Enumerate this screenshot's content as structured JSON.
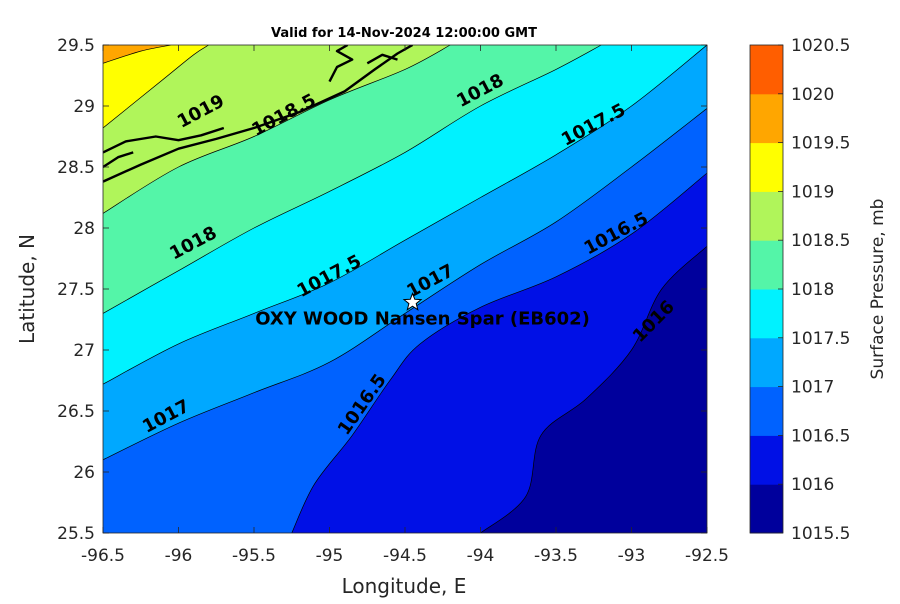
{
  "chart_data": {
    "type": "contour",
    "title": "Valid for 14-Nov-2024 12:00:00 GMT",
    "xlabel": "Longitude, E",
    "ylabel": "Latitude, N",
    "xlim": [
      -96.5,
      -92.5
    ],
    "ylim": [
      25.5,
      29.5
    ],
    "xticks": [
      "-96.5",
      "-96",
      "-95.5",
      "-95",
      "-94.5",
      "-94",
      "-93.5",
      "-93",
      "-92.5"
    ],
    "yticks": [
      "25.5",
      "26",
      "26.5",
      "27",
      "27.5",
      "28",
      "28.5",
      "29",
      "29.5"
    ],
    "grid": false,
    "colorbar": {
      "label": "Surface Pressure, mb",
      "ticks": [
        "1015.5",
        "1016",
        "1016.5",
        "1017",
        "1017.5",
        "1018",
        "1018.5",
        "1019",
        "1019.5",
        "1020",
        "1020.5"
      ],
      "levels": [
        1015.5,
        1016,
        1016.5,
        1017,
        1017.5,
        1018,
        1018.5,
        1019,
        1019.5,
        1020,
        1020.5
      ],
      "colors": [
        "#00009c",
        "#0010e6",
        "#0062ff",
        "#00a8ff",
        "#00f2ff",
        "#54f5a8",
        "#b0f55a",
        "#ffff00",
        "#ffa600",
        "#ff5e00",
        "#ff0000"
      ]
    },
    "contours": [
      {
        "level": 1016,
        "label": "1016",
        "points": [
          [
            -94.0,
            25.5
          ],
          [
            -93.7,
            25.8
          ],
          [
            -93.6,
            26.3
          ],
          [
            -93.3,
            26.6
          ],
          [
            -93.0,
            27.0
          ],
          [
            -92.8,
            27.5
          ],
          [
            -92.5,
            27.85
          ]
        ]
      },
      {
        "level": 1016.5,
        "label": "1016.5",
        "points": [
          [
            -95.25,
            25.5
          ],
          [
            -95.1,
            25.9
          ],
          [
            -94.85,
            26.3
          ],
          [
            -94.6,
            26.75
          ],
          [
            -94.4,
            27.05
          ],
          [
            -94.0,
            27.35
          ],
          [
            -93.5,
            27.6
          ],
          [
            -93.0,
            27.95
          ],
          [
            -92.5,
            28.45
          ]
        ]
      },
      {
        "level": 1017,
        "label": "1017",
        "points": [
          [
            -96.5,
            26.1
          ],
          [
            -96.0,
            26.4
          ],
          [
            -95.5,
            26.65
          ],
          [
            -95.0,
            26.9
          ],
          [
            -94.5,
            27.3
          ],
          [
            -94.0,
            27.7
          ],
          [
            -93.5,
            28.05
          ],
          [
            -93.0,
            28.5
          ],
          [
            -92.5,
            28.98
          ]
        ]
      },
      {
        "level": 1017.5,
        "label": "1017.5",
        "points": [
          [
            -96.5,
            26.72
          ],
          [
            -96.0,
            27.05
          ],
          [
            -95.5,
            27.3
          ],
          [
            -95.0,
            27.55
          ],
          [
            -94.5,
            27.9
          ],
          [
            -94.0,
            28.25
          ],
          [
            -93.5,
            28.6
          ],
          [
            -93.0,
            29.0
          ],
          [
            -92.5,
            29.5
          ]
        ]
      },
      {
        "level": 1018,
        "label": "1018",
        "points": [
          [
            -96.5,
            27.3
          ],
          [
            -96.0,
            27.65
          ],
          [
            -95.5,
            28.0
          ],
          [
            -95.0,
            28.3
          ],
          [
            -94.5,
            28.62
          ],
          [
            -94.0,
            29.0
          ],
          [
            -93.5,
            29.3
          ],
          [
            -93.2,
            29.5
          ]
        ]
      },
      {
        "level": 1018.5,
        "label": "1018.5",
        "points": [
          [
            -96.5,
            28.12
          ],
          [
            -96.0,
            28.5
          ],
          [
            -95.5,
            28.75
          ],
          [
            -95.0,
            29.05
          ],
          [
            -94.5,
            29.3
          ],
          [
            -94.2,
            29.5
          ]
        ]
      },
      {
        "level": 1019,
        "label": "1019",
        "points": [
          [
            -96.5,
            28.82
          ],
          [
            -96.1,
            29.22
          ],
          [
            -95.9,
            29.42
          ],
          [
            -95.8,
            29.5
          ]
        ]
      }
    ],
    "contour_labels": [
      {
        "text": "1019",
        "lon": -95.85,
        "lat": 28.95
      },
      {
        "text": "1018.5",
        "lon": -95.3,
        "lat": 28.92
      },
      {
        "text": "1018",
        "lon": -94.0,
        "lat": 29.12
      },
      {
        "text": "1017.5",
        "lon": -93.25,
        "lat": 28.84
      },
      {
        "text": "1018",
        "lon": -95.9,
        "lat": 27.87
      },
      {
        "text": "1017.5",
        "lon": -95.0,
        "lat": 27.6
      },
      {
        "text": "1017",
        "lon": -94.33,
        "lat": 27.56
      },
      {
        "text": "1016.5",
        "lon": -93.1,
        "lat": 27.95
      },
      {
        "text": "1017",
        "lon": -96.08,
        "lat": 26.45
      },
      {
        "text": "1016.5",
        "lon": -94.78,
        "lat": 26.55
      },
      {
        "text": "1016",
        "lon": -92.85,
        "lat": 27.23
      }
    ],
    "annotations": [
      {
        "type": "star",
        "lon": -94.45,
        "lat": 27.39,
        "text": "OXY WOOD Nansen Spar (EB602)"
      }
    ],
    "coastline": [
      [
        [
          -96.5,
          28.38
        ],
        [
          -96.25,
          28.52
        ],
        [
          -96.0,
          28.65
        ],
        [
          -95.75,
          28.73
        ],
        [
          -95.5,
          28.82
        ],
        [
          -95.2,
          28.95
        ],
        [
          -94.9,
          29.12
        ],
        [
          -94.7,
          29.3
        ],
        [
          -94.55,
          29.43
        ],
        [
          -94.45,
          29.5
        ]
      ],
      [
        [
          -96.5,
          28.62
        ],
        [
          -96.35,
          28.71
        ],
        [
          -96.15,
          28.75
        ],
        [
          -96.0,
          28.72
        ],
        [
          -95.85,
          28.76
        ],
        [
          -95.7,
          28.82
        ]
      ],
      [
        [
          -96.5,
          28.5
        ],
        [
          -96.4,
          28.58
        ],
        [
          -96.3,
          28.62
        ]
      ],
      [
        [
          -95.0,
          29.2
        ],
        [
          -94.95,
          29.32
        ],
        [
          -94.85,
          29.38
        ],
        [
          -94.95,
          29.45
        ],
        [
          -94.88,
          29.5
        ]
      ],
      [
        [
          -94.75,
          29.35
        ],
        [
          -94.65,
          29.42
        ],
        [
          -94.55,
          29.38
        ]
      ]
    ]
  }
}
